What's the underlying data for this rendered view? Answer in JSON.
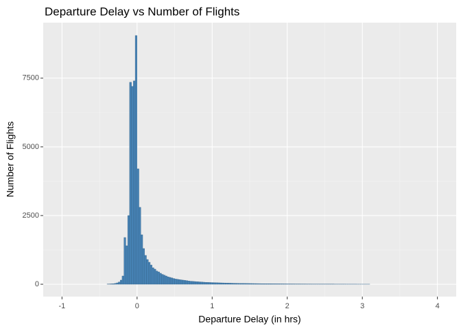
{
  "chart_data": {
    "type": "histogram",
    "title": "Departure Delay vs Number of Flights",
    "x_label": "Departure Delay (in hrs)",
    "y_label": "Number of Flights",
    "bins": [
      -0.4,
      -0.375,
      -0.35,
      -0.325,
      -0.3,
      -0.275,
      -0.25,
      -0.225,
      -0.2,
      -0.175,
      -0.15,
      -0.125,
      -0.1,
      -0.075,
      -0.05,
      -0.025,
      0,
      0.025,
      0.05,
      0.075,
      0.1,
      0.125,
      0.15,
      0.175,
      0.2,
      0.225,
      0.25,
      0.275,
      0.3,
      0.325,
      0.35,
      0.375,
      0.4,
      0.425,
      0.45,
      0.475,
      0.5,
      0.525,
      0.55,
      0.575,
      0.6,
      0.625,
      0.65,
      0.675,
      0.7,
      0.725,
      0.75,
      0.775,
      0.8,
      0.825,
      0.85,
      0.875,
      0.9,
      0.925,
      0.95,
      0.975,
      1,
      1.025,
      1.05,
      1.075,
      1.1,
      1.125,
      1.15,
      1.175,
      1.2,
      1.225,
      1.25,
      1.275,
      1.3,
      1.325,
      1.35,
      1.375,
      1.4,
      1.425,
      1.45,
      1.475,
      1.5,
      1.525,
      1.55,
      1.575,
      1.6,
      1.625,
      1.65,
      1.675,
      1.7,
      1.725,
      1.75,
      1.775,
      1.8,
      1.825,
      1.85,
      1.875,
      1.9,
      1.925,
      1.95,
      1.975,
      2,
      2.025,
      2.05,
      2.075,
      2.1,
      2.125,
      2.15,
      2.175,
      2.2,
      2.225,
      2.25,
      2.275,
      2.3,
      2.325,
      2.35,
      2.375,
      2.4,
      2.425,
      2.45,
      2.475,
      2.5,
      2.525,
      2.55,
      2.575,
      2.6,
      2.625,
      2.65,
      2.675,
      2.7,
      2.725,
      2.75,
      2.775,
      2.8,
      2.825,
      2.85,
      2.875,
      2.9,
      2.925,
      2.95,
      2.975,
      3,
      3.025,
      3.05,
      3.075,
      3.1
    ],
    "values": [
      5,
      10,
      15,
      20,
      30,
      50,
      80,
      150,
      300,
      1700,
      1400,
      2500,
      7350,
      7200,
      7400,
      9050,
      4200,
      2800,
      1800,
      1300,
      1050,
      900,
      800,
      700,
      600,
      550,
      480,
      450,
      400,
      360,
      330,
      300,
      270,
      250,
      230,
      210,
      190,
      180,
      170,
      160,
      150,
      140,
      130,
      120,
      110,
      105,
      100,
      95,
      90,
      85,
      80,
      75,
      70,
      68,
      65,
      62,
      60,
      58,
      55,
      52,
      50,
      48,
      46,
      44,
      42,
      40,
      38,
      36,
      35,
      34,
      32,
      31,
      30,
      29,
      28,
      27,
      26,
      25,
      24,
      23,
      22,
      21,
      20,
      20,
      19,
      18,
      18,
      17,
      16,
      16,
      15,
      15,
      14,
      14,
      13,
      13,
      12,
      12,
      11,
      11,
      10,
      10,
      10,
      9,
      9,
      9,
      8,
      8,
      8,
      7,
      7,
      7,
      6,
      6,
      6,
      6,
      5,
      5,
      5,
      5,
      5,
      4,
      4,
      4,
      4,
      4,
      4,
      3,
      3,
      3,
      3,
      3,
      3,
      2,
      2,
      2,
      2,
      2,
      2,
      2
    ],
    "color": "#4682b4",
    "edge_color": "#36648b",
    "xlim": [
      -1.25,
      4.25
    ],
    "xticks": [
      -1,
      0,
      1,
      2,
      3,
      4
    ],
    "ylim": [
      -450,
      9520
    ],
    "yticks": [
      0,
      2500,
      5000,
      7500
    ],
    "grid": true
  }
}
